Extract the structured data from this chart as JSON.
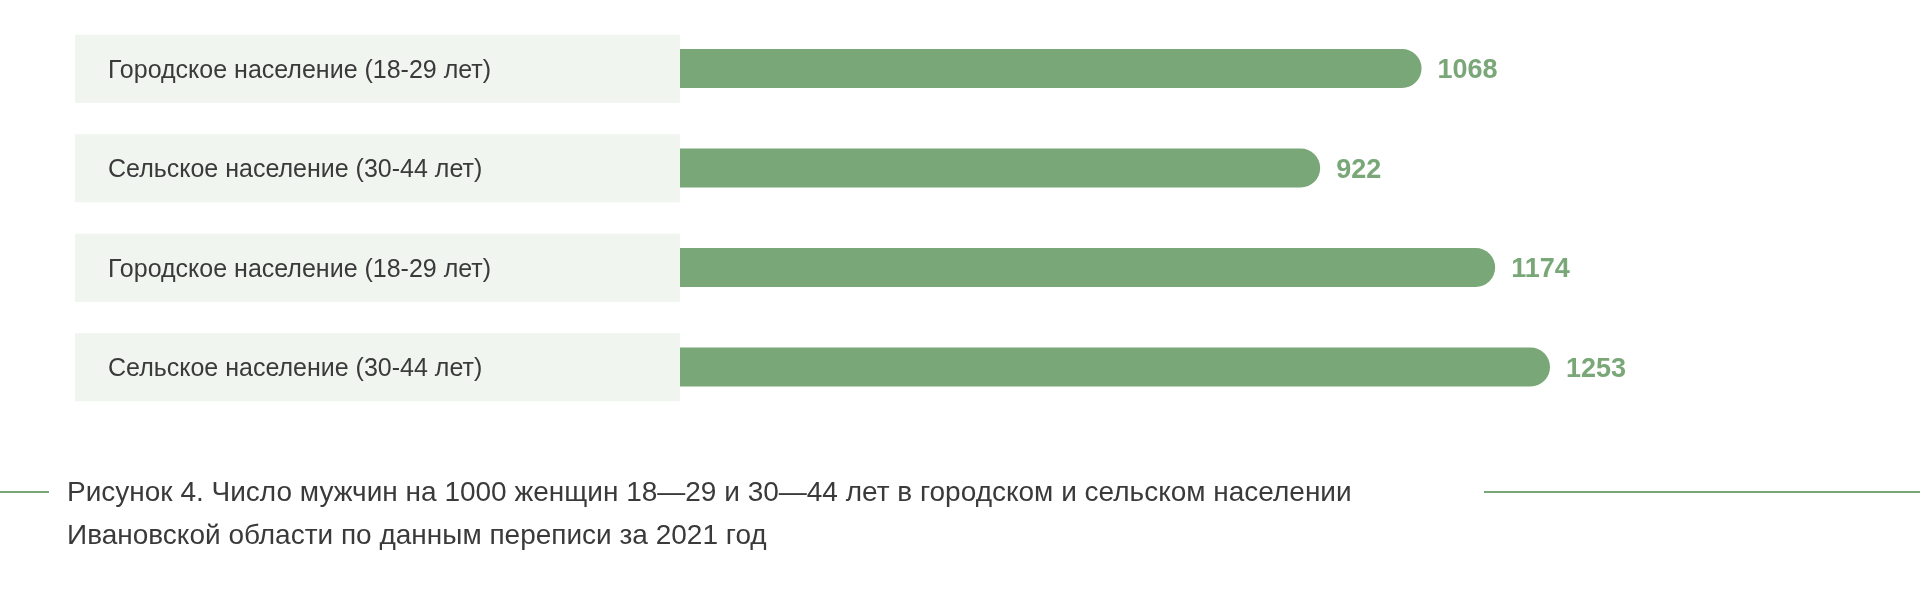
{
  "chart_data": {
    "type": "bar",
    "orientation": "horizontal",
    "title": "Рисунок 4. Число мужчин на 1000 женщин 18—29 и 30—44 лет в городском и сельском населении Ивановской области по данным переписи за 2021 год",
    "categories": [
      "Городское население (18-29 лет)",
      "Сельское население (30-44 лет)",
      "Городское население (18-29 лет)",
      "Сельское население (30-44 лет)"
    ],
    "values": [
      1068,
      922,
      1174,
      1253
    ],
    "color": "#79a778",
    "data_labels": true
  }
}
